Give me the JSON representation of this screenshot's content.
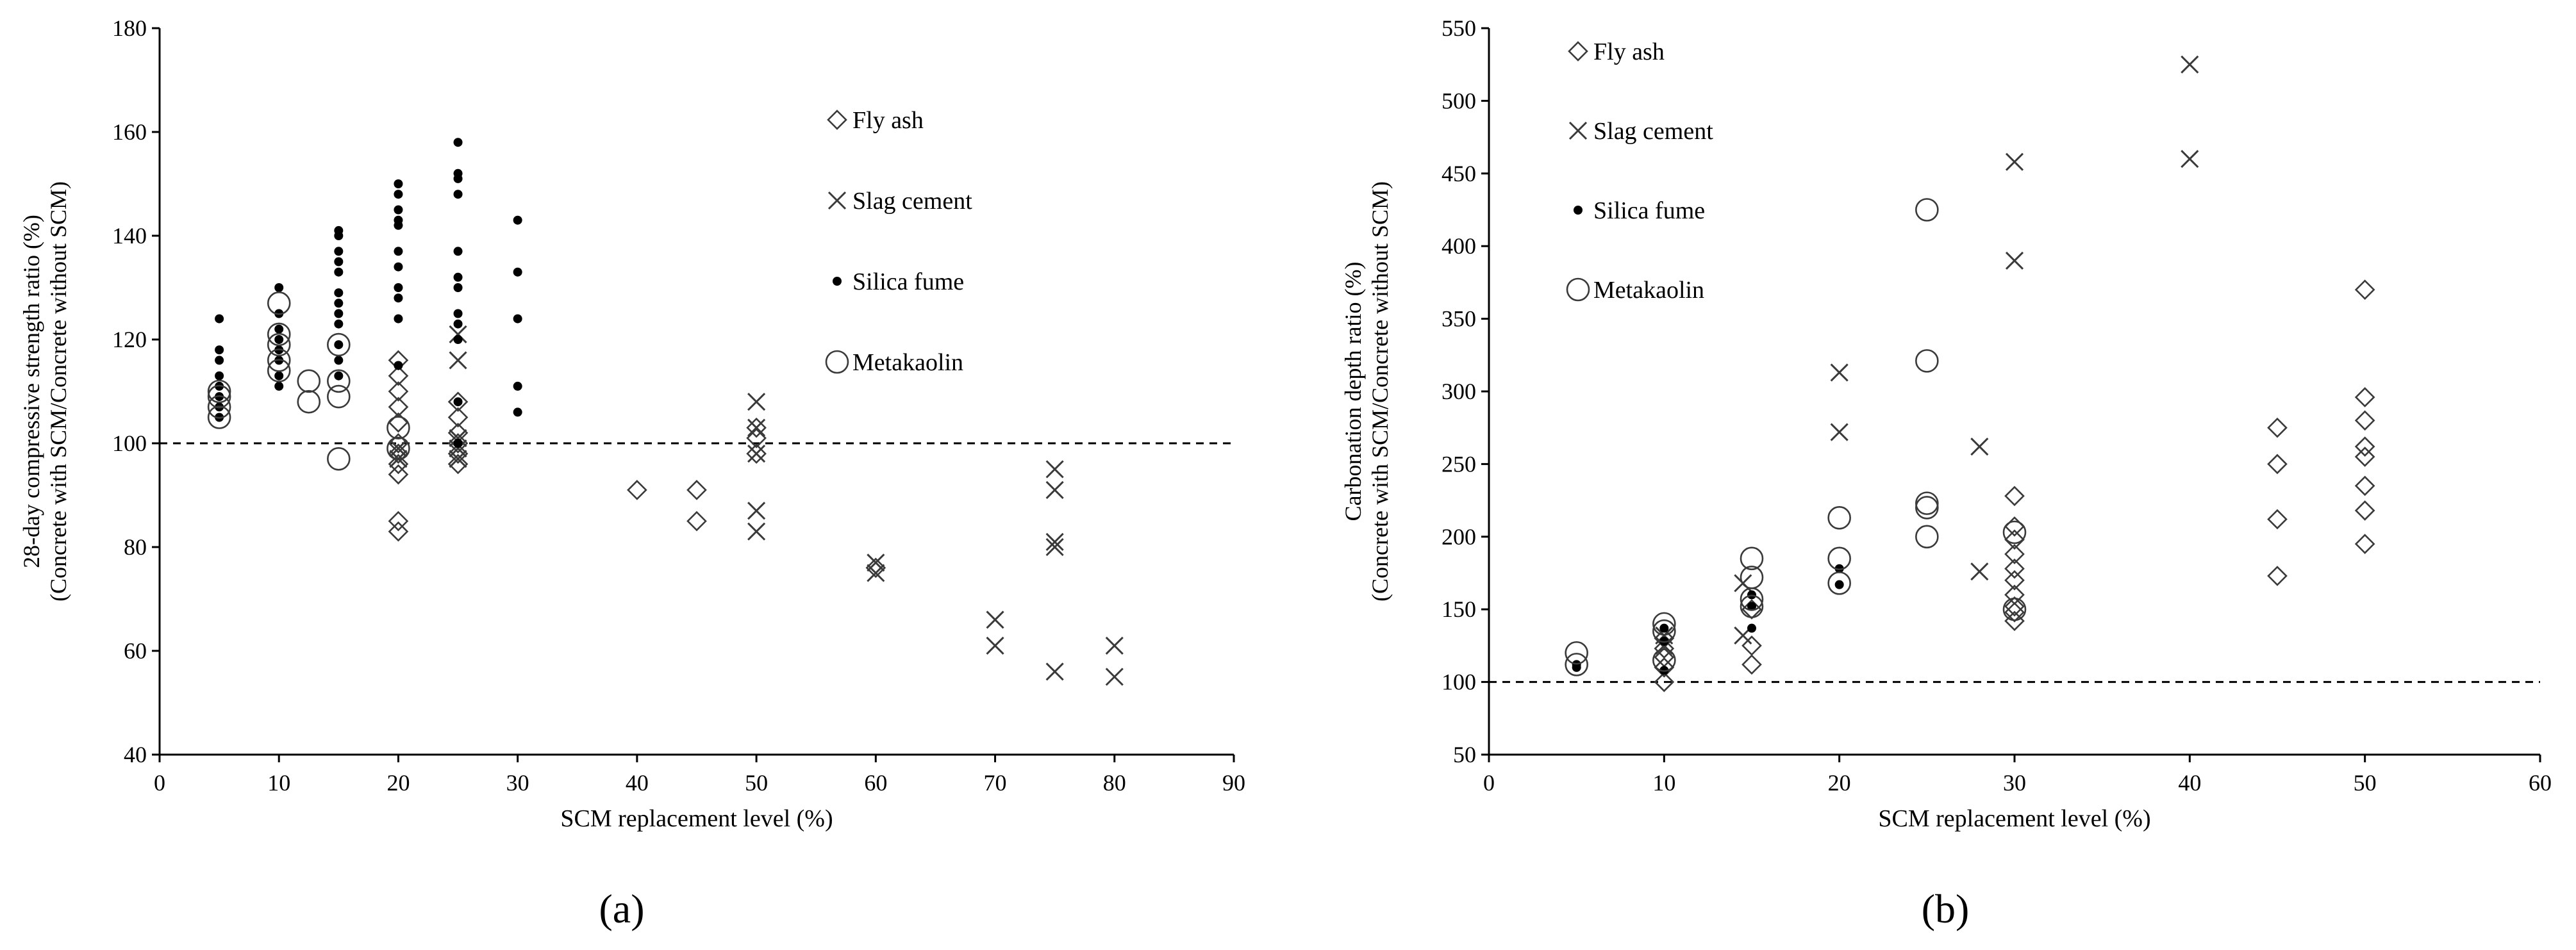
{
  "chart_data": [
    {
      "type": "scatter",
      "panel_label": "a",
      "title": "",
      "xlabel": "SCM replacement level (%)",
      "ylabel_line1": "28-day compressive strength ratio (%)",
      "ylabel_line2": "(Concrete with SCM/Concrete without SCM)",
      "xlim": [
        0,
        90
      ],
      "ylim": [
        40,
        180
      ],
      "xticks": [
        0,
        10,
        20,
        30,
        40,
        50,
        60,
        70,
        80,
        90
      ],
      "yticks": [
        40,
        60,
        80,
        100,
        120,
        140,
        160,
        180
      ],
      "reference_line": 100,
      "legend_position": "top-center",
      "series": [
        {
          "name": "Fly ash",
          "marker": "diamond",
          "points": [
            [
              20,
              83
            ],
            [
              20,
              85
            ],
            [
              20,
              94
            ],
            [
              20,
              96
            ],
            [
              20,
              98
            ],
            [
              20,
              100
            ],
            [
              20,
              104
            ],
            [
              20,
              107
            ],
            [
              20,
              110
            ],
            [
              20,
              113
            ],
            [
              20,
              116
            ],
            [
              25,
              96
            ],
            [
              25,
              98
            ],
            [
              25,
              100
            ],
            [
              25,
              102
            ],
            [
              25,
              105
            ],
            [
              25,
              108
            ],
            [
              40,
              91
            ],
            [
              45,
              85
            ],
            [
              45,
              91
            ],
            [
              50,
              98
            ],
            [
              50,
              101
            ],
            [
              50,
              103
            ],
            [
              60,
              76
            ]
          ]
        },
        {
          "name": "Slag cement",
          "marker": "x",
          "points": [
            [
              20,
              97
            ],
            [
              20,
              99
            ],
            [
              25,
              97
            ],
            [
              25,
              99
            ],
            [
              25,
              101
            ],
            [
              25,
              116
            ],
            [
              25,
              121
            ],
            [
              50,
              83
            ],
            [
              50,
              87
            ],
            [
              50,
              98
            ],
            [
              50,
              103
            ],
            [
              50,
              108
            ],
            [
              60,
              75
            ],
            [
              60,
              77
            ],
            [
              70,
              61
            ],
            [
              70,
              66
            ],
            [
              75,
              56
            ],
            [
              75,
              80
            ],
            [
              75,
              81
            ],
            [
              75,
              91
            ],
            [
              75,
              95
            ],
            [
              80,
              55
            ],
            [
              80,
              61
            ]
          ]
        },
        {
          "name": "Silica fume",
          "marker": "dot",
          "points": [
            [
              5,
              105
            ],
            [
              5,
              107
            ],
            [
              5,
              109
            ],
            [
              5,
              111
            ],
            [
              5,
              113
            ],
            [
              5,
              116
            ],
            [
              5,
              118
            ],
            [
              5,
              124
            ],
            [
              10,
              111
            ],
            [
              10,
              113
            ],
            [
              10,
              116
            ],
            [
              10,
              118
            ],
            [
              10,
              120
            ],
            [
              10,
              122
            ],
            [
              10,
              125
            ],
            [
              10,
              130
            ],
            [
              15,
              113
            ],
            [
              15,
              116
            ],
            [
              15,
              119
            ],
            [
              15,
              123
            ],
            [
              15,
              125
            ],
            [
              15,
              127
            ],
            [
              15,
              129
            ],
            [
              15,
              133
            ],
            [
              15,
              135
            ],
            [
              15,
              137
            ],
            [
              15,
              140
            ],
            [
              15,
              141
            ],
            [
              20,
              115
            ],
            [
              20,
              124
            ],
            [
              20,
              128
            ],
            [
              20,
              130
            ],
            [
              20,
              134
            ],
            [
              20,
              137
            ],
            [
              20,
              142
            ],
            [
              20,
              143
            ],
            [
              20,
              145
            ],
            [
              20,
              148
            ],
            [
              20,
              150
            ],
            [
              25,
              100
            ],
            [
              25,
              108
            ],
            [
              25,
              120
            ],
            [
              25,
              123
            ],
            [
              25,
              125
            ],
            [
              25,
              130
            ],
            [
              25,
              132
            ],
            [
              25,
              137
            ],
            [
              25,
              148
            ],
            [
              25,
              151
            ],
            [
              25,
              152
            ],
            [
              25,
              158
            ],
            [
              30,
              106
            ],
            [
              30,
              111
            ],
            [
              30,
              124
            ],
            [
              30,
              133
            ],
            [
              30,
              143
            ]
          ]
        },
        {
          "name": "Metakaolin",
          "marker": "circle",
          "points": [
            [
              5,
              105
            ],
            [
              5,
              107
            ],
            [
              5,
              109
            ],
            [
              5,
              110
            ],
            [
              10,
              114
            ],
            [
              10,
              116
            ],
            [
              10,
              119
            ],
            [
              10,
              121
            ],
            [
              10,
              127
            ],
            [
              12.5,
              108
            ],
            [
              12.5,
              112
            ],
            [
              15,
              97
            ],
            [
              15,
              109
            ],
            [
              15,
              112
            ],
            [
              15,
              119
            ],
            [
              20,
              99
            ],
            [
              20,
              103
            ]
          ]
        }
      ]
    },
    {
      "type": "scatter",
      "panel_label": "b",
      "title": "",
      "xlabel": "SCM replacement level (%)",
      "ylabel_line1": "Carbonation depth ratio (%)",
      "ylabel_line2": "(Concrete with SCM/Concrete without SCM)",
      "xlim": [
        0,
        60
      ],
      "ylim": [
        50,
        550
      ],
      "xticks": [
        0,
        10,
        20,
        30,
        40,
        50,
        60
      ],
      "yticks": [
        50,
        100,
        150,
        200,
        250,
        300,
        350,
        400,
        450,
        500,
        550
      ],
      "reference_line": 100,
      "legend_position": "top-left",
      "series": [
        {
          "name": "Fly ash",
          "marker": "diamond",
          "points": [
            [
              10,
              100
            ],
            [
              10,
              110
            ],
            [
              10,
              117
            ],
            [
              10,
              123
            ],
            [
              10,
              130
            ],
            [
              15,
              112
            ],
            [
              15,
              125
            ],
            [
              15,
              150
            ],
            [
              30,
              142
            ],
            [
              30,
              148
            ],
            [
              30,
              152
            ],
            [
              30,
              160
            ],
            [
              30,
              170
            ],
            [
              30,
              178
            ],
            [
              30,
              188
            ],
            [
              30,
              198
            ],
            [
              30,
              207
            ],
            [
              30,
              228
            ],
            [
              45,
              173
            ],
            [
              45,
              212
            ],
            [
              45,
              250
            ],
            [
              45,
              275
            ],
            [
              50,
              195
            ],
            [
              50,
              218
            ],
            [
              50,
              235
            ],
            [
              50,
              255
            ],
            [
              50,
              262
            ],
            [
              50,
              280
            ],
            [
              50,
              296
            ],
            [
              50,
              370
            ]
          ]
        },
        {
          "name": "Slag cement",
          "marker": "x",
          "points": [
            [
              10,
              125
            ],
            [
              10,
              132
            ],
            [
              14.5,
              132
            ],
            [
              14.5,
              168
            ],
            [
              20,
              272
            ],
            [
              20,
              313
            ],
            [
              28,
              262
            ],
            [
              28,
              176
            ],
            [
              30,
              390
            ],
            [
              30,
              458
            ],
            [
              40,
              460
            ],
            [
              40,
              525
            ]
          ]
        },
        {
          "name": "Silica fume",
          "marker": "dot",
          "points": [
            [
              5,
              110
            ],
            [
              5,
              112
            ],
            [
              10,
              108
            ],
            [
              10,
              128
            ],
            [
              10,
              137
            ],
            [
              15,
              137
            ],
            [
              15,
              152
            ],
            [
              15,
              160
            ],
            [
              20,
              167
            ],
            [
              20,
              178
            ]
          ]
        },
        {
          "name": "Metakaolin",
          "marker": "circle",
          "points": [
            [
              5,
              112
            ],
            [
              5,
              120
            ],
            [
              10,
              115
            ],
            [
              10,
              135
            ],
            [
              10,
              140
            ],
            [
              15,
              152
            ],
            [
              15,
              157
            ],
            [
              15,
              172
            ],
            [
              15,
              185
            ],
            [
              20,
              168
            ],
            [
              20,
              185
            ],
            [
              20,
              213
            ],
            [
              25,
              200
            ],
            [
              25,
              220
            ],
            [
              25,
              223
            ],
            [
              25,
              321
            ],
            [
              25,
              425
            ],
            [
              30,
              150
            ],
            [
              30,
              203
            ]
          ]
        }
      ]
    }
  ]
}
